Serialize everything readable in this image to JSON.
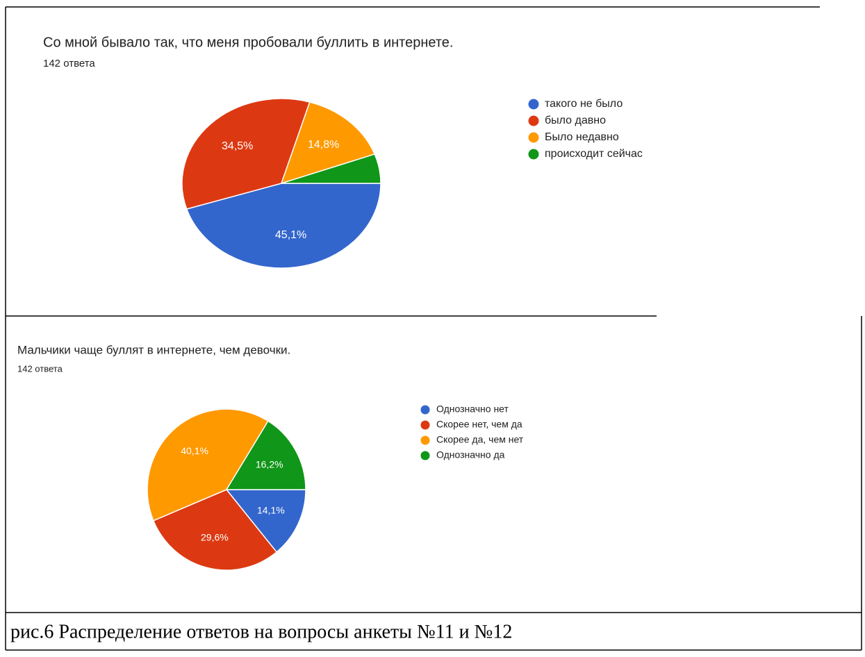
{
  "chart_data": [
    {
      "type": "pie",
      "title": "Со мной бывало так, что меня пробовали буллить в интернете.",
      "subtitle": "142 ответа",
      "categories": [
        "такого не было",
        "было давно",
        "Было недавно",
        "происходит сейчас"
      ],
      "values": [
        45.1,
        34.5,
        14.8,
        5.6
      ],
      "value_labels": [
        "45,1%",
        "34,5%",
        "14,8%",
        null
      ],
      "colors": [
        "#3366cc",
        "#dc3912",
        "#ff9900",
        "#109618"
      ],
      "legend": "right"
    },
    {
      "type": "pie",
      "title": "Мальчики чаще буллят в интернете, чем девочки.",
      "subtitle": "142 ответа",
      "categories": [
        "Однозначно нет",
        "Скорее нет, чем да",
        "Скорее да, чем нет",
        "Однозначно да"
      ],
      "values": [
        14.1,
        29.6,
        40.1,
        16.2
      ],
      "value_labels": [
        "14,1%",
        "29,6%",
        "40,1%",
        "16,2%"
      ],
      "colors": [
        "#3366cc",
        "#dc3912",
        "#ff9900",
        "#109618"
      ],
      "legend": "right"
    }
  ],
  "caption": "рис.6 Распределение ответов на вопросы анкеты №11 и №12"
}
